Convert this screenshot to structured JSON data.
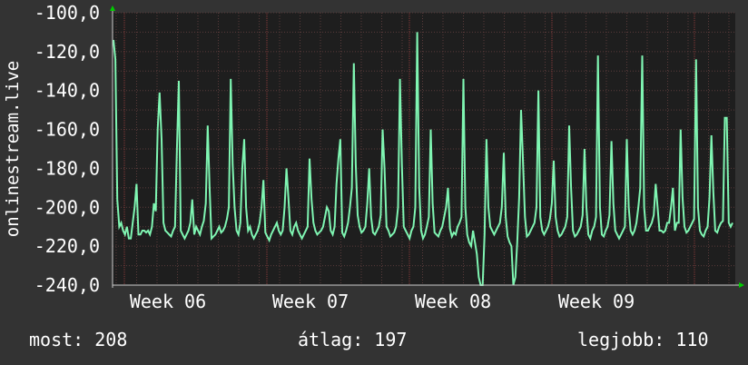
{
  "chart_data": {
    "type": "line",
    "ylabel": "onlinestream.live",
    "ylim": [
      -240,
      -100
    ],
    "y_ticks": [
      "-100,0",
      "-120,0",
      "-140,0",
      "-160,0",
      "-180,0",
      "-200,0",
      "-220,0",
      "-240,0"
    ],
    "x_ticks": [
      "Week 06",
      "Week 07",
      "Week 08",
      "Week 09"
    ],
    "grid": true,
    "colors": {
      "background": "#333333",
      "plot": "#1e1e1e",
      "grid": "#5a3b3b",
      "line": "#7ff5b2",
      "axis_arrow": "#00cc00"
    },
    "series": [
      {
        "values": [
          -114,
          -124,
          -196,
          -210,
          -208,
          -212,
          -214,
          -210,
          -216,
          -216,
          -208,
          -200,
          -188,
          -214,
          -214,
          -212,
          -212,
          -213,
          -212,
          -214,
          -210,
          -198,
          -202,
          -160,
          -141,
          -165,
          -208,
          -212,
          -213,
          -214,
          -215,
          -212,
          -210,
          -170,
          -135,
          -212,
          -214,
          -216,
          -214,
          -212,
          -208,
          -196,
          -214,
          -210,
          -212,
          -214,
          -210,
          -207,
          -198,
          -158,
          -190,
          -216,
          -215,
          -214,
          -212,
          -210,
          -213,
          -212,
          -210,
          -206,
          -200,
          -134,
          -178,
          -200,
          -212,
          -214,
          -208,
          -180,
          -165,
          -200,
          -212,
          -210,
          -214,
          -216,
          -214,
          -212,
          -208,
          -200,
          -186,
          -213,
          -215,
          -217,
          -214,
          -212,
          -210,
          -208,
          -212,
          -214,
          -212,
          -200,
          -180,
          -195,
          -212,
          -214,
          -210,
          -208,
          -212,
          -214,
          -216,
          -214,
          -212,
          -210,
          -175,
          -196,
          -208,
          -212,
          -214,
          -213,
          -212,
          -210,
          -205,
          -200,
          -202,
          -212,
          -214,
          -210,
          -188,
          -175,
          -165,
          -213,
          -215,
          -212,
          -208,
          -200,
          -190,
          -126,
          -178,
          -204,
          -210,
          -213,
          -212,
          -210,
          -198,
          -180,
          -205,
          -213,
          -214,
          -212,
          -210,
          -204,
          -160,
          -180,
          -210,
          -212,
          -215,
          -214,
          -213,
          -210,
          -200,
          -134,
          -178,
          -210,
          -212,
          -214,
          -216,
          -212,
          -210,
          -200,
          -110,
          -190,
          -212,
          -216,
          -214,
          -210,
          -205,
          -160,
          -198,
          -213,
          -214,
          -215,
          -212,
          -210,
          -205,
          -200,
          -190,
          -211,
          -215,
          -213,
          -214,
          -210,
          -208,
          -205,
          -134,
          -200,
          -214,
          -218,
          -220,
          -212,
          -218,
          -224,
          -236,
          -240,
          -240,
          -214,
          -165,
          -200,
          -210,
          -212,
          -214,
          -212,
          -210,
          -208,
          -200,
          -172,
          -205,
          -215,
          -218,
          -220,
          -240,
          -236,
          -218,
          -195,
          -150,
          -176,
          -205,
          -215,
          -214,
          -212,
          -210,
          -208,
          -200,
          -140,
          -205,
          -212,
          -214,
          -212,
          -210,
          -206,
          -198,
          -176,
          -205,
          -212,
          -215,
          -214,
          -212,
          -210,
          -205,
          -158,
          -190,
          -212,
          -215,
          -214,
          -212,
          -210,
          -204,
          -170,
          -200,
          -214,
          -216,
          -212,
          -210,
          -205,
          -122,
          -200,
          -214,
          -215,
          -212,
          -210,
          -204,
          -166,
          -198,
          -212,
          -214,
          -216,
          -214,
          -212,
          -210,
          -165,
          -200,
          -212,
          -214,
          -212,
          -208,
          -200,
          -190,
          -122,
          -200,
          -212,
          -212,
          -210,
          -208,
          -204,
          -188,
          -200,
          -212,
          -212,
          -213,
          -212,
          -208,
          -208,
          -200,
          -190,
          -212,
          -208,
          -208,
          -160,
          -195,
          -210,
          -213,
          -212,
          -210,
          -208,
          -206,
          -124,
          -200,
          -212,
          -214,
          -215,
          -212,
          -210,
          -195,
          -163,
          -192,
          -212,
          -213,
          -210,
          -208,
          -207,
          -154,
          -154,
          -208,
          -210,
          -208
        ]
      }
    ]
  },
  "footer": {
    "now": "most: 208",
    "avg": "átlag: 197",
    "best": "legjobb: 110"
  }
}
